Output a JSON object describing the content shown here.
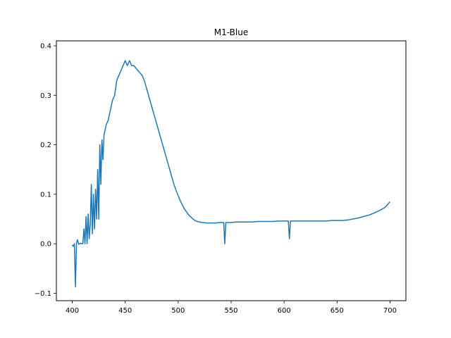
{
  "chart_data": {
    "type": "line",
    "title": "M1-Blue",
    "xlabel": "",
    "ylabel": "",
    "xlim": [
      385,
      715
    ],
    "ylim": [
      -0.115,
      0.41
    ],
    "x_ticks": [
      400,
      450,
      500,
      550,
      600,
      650,
      700
    ],
    "x_tick_labels": [
      "400",
      "450",
      "500",
      "550",
      "600",
      "650",
      "700"
    ],
    "y_ticks": [
      -0.1,
      0.0,
      0.1,
      0.2,
      0.3,
      0.4
    ],
    "y_tick_labels": [
      "−0.1",
      "0.0",
      "0.1",
      "0.2",
      "0.3",
      "0.4"
    ],
    "grid": false,
    "legend": false,
    "series": [
      {
        "color": "#1f77b4",
        "x": [
          400,
          401,
          402,
          403,
          404,
          405,
          406,
          407,
          408,
          409,
          410,
          411,
          412,
          413,
          414,
          415,
          416,
          417,
          418,
          419,
          420,
          421,
          422,
          423,
          424,
          425,
          426,
          427,
          428,
          429,
          430,
          432,
          434,
          436,
          438,
          440,
          442,
          444,
          446,
          448,
          450,
          452,
          454,
          456,
          458,
          460,
          462,
          464,
          466,
          468,
          470,
          472,
          474,
          476,
          478,
          480,
          482,
          484,
          486,
          488,
          490,
          492,
          494,
          496,
          498,
          500,
          502,
          504,
          506,
          508,
          510,
          512,
          514,
          516,
          518,
          520,
          522,
          524,
          526,
          528,
          530,
          535,
          540,
          543,
          544,
          545,
          546,
          550,
          555,
          560,
          565,
          570,
          575,
          580,
          585,
          590,
          595,
          600,
          604,
          605,
          606,
          607,
          610,
          615,
          620,
          625,
          630,
          635,
          640,
          645,
          650,
          655,
          660,
          665,
          670,
          675,
          680,
          685,
          690,
          695,
          698,
          700
        ],
        "y": [
          -0.002,
          -0.005,
          0.0,
          -0.087,
          0.002,
          0.008,
          -0.001,
          0.0,
          0.001,
          0.0,
          0.0,
          0.03,
          0.0,
          0.055,
          0.0,
          0.06,
          0.01,
          0.04,
          0.12,
          0.02,
          0.1,
          0.03,
          0.11,
          0.05,
          0.15,
          0.05,
          0.2,
          0.12,
          0.21,
          0.17,
          0.22,
          0.24,
          0.25,
          0.27,
          0.29,
          0.3,
          0.33,
          0.34,
          0.35,
          0.36,
          0.37,
          0.36,
          0.37,
          0.36,
          0.36,
          0.355,
          0.35,
          0.345,
          0.34,
          0.33,
          0.315,
          0.3,
          0.285,
          0.27,
          0.255,
          0.24,
          0.225,
          0.21,
          0.195,
          0.18,
          0.165,
          0.15,
          0.135,
          0.12,
          0.108,
          0.097,
          0.087,
          0.078,
          0.07,
          0.064,
          0.058,
          0.054,
          0.05,
          0.047,
          0.045,
          0.044,
          0.043,
          0.043,
          0.042,
          0.042,
          0.042,
          0.042,
          0.043,
          0.043,
          0.0,
          0.043,
          0.043,
          0.043,
          0.044,
          0.044,
          0.044,
          0.044,
          0.045,
          0.045,
          0.045,
          0.045,
          0.046,
          0.046,
          0.046,
          0.01,
          0.046,
          0.046,
          0.046,
          0.046,
          0.046,
          0.046,
          0.046,
          0.046,
          0.046,
          0.047,
          0.047,
          0.047,
          0.048,
          0.05,
          0.052,
          0.055,
          0.058,
          0.062,
          0.067,
          0.073,
          0.08,
          0.085
        ]
      }
    ]
  }
}
